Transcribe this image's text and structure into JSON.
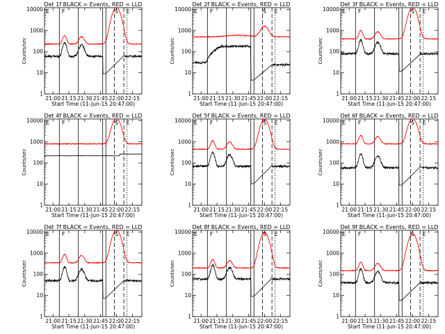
{
  "page": {
    "background": "#ffffff",
    "axis_color": "#000000"
  },
  "chart_data": {
    "type": "line",
    "yscale": "log",
    "ylim": [
      1,
      12000
    ],
    "y_ticks": [
      {
        "value": 1,
        "label": "1"
      },
      {
        "value": 10,
        "label": "10"
      },
      {
        "value": 100,
        "label": "100"
      },
      {
        "value": 1000,
        "label": "1000"
      },
      {
        "value": 10000,
        "label": "10000"
      }
    ],
    "xlim": [
      "20:52",
      "22:24"
    ],
    "x_ticks": [
      {
        "value": "21:00",
        "label": "21:00"
      },
      {
        "value": "21:15",
        "label": "21:15"
      },
      {
        "value": "21:30",
        "label": "21:30"
      },
      {
        "value": "21:45",
        "label": "21:45"
      },
      {
        "value": "22:00",
        "label": "22:00"
      },
      {
        "value": "22:15",
        "label": "22:15"
      }
    ],
    "xlabel": "Start Time (11-Jun-15 20:47:00)",
    "ylabel": "Counts/sec",
    "events_color": "#000000",
    "lld_color": "#ff0000",
    "markers": {
      "solid": [
        "21:06",
        "21:24",
        "21:47",
        "21:50"
      ],
      "dashed": [
        "21:58",
        "22:07"
      ],
      "dotted": [
        "22:10"
      ]
    },
    "flags": [
      {
        "time": "20:52",
        "text": "E"
      },
      {
        "time": "21:07",
        "text": "F"
      },
      {
        "time": "21:57",
        "text": "S"
      },
      {
        "time": "22:08",
        "text": "E"
      }
    ],
    "panels": [
      {
        "title": "Det 1f BLACK = Events, RED = LLD",
        "events_base": 60,
        "lld_base": 230,
        "peak": 12000,
        "flare_on": true,
        "flat": false,
        "plateau": false
      },
      {
        "title": "Det 2f BLACK = Events, RED = LLD",
        "events_base": 30,
        "lld_base": 500,
        "peak": 1100,
        "flare_on": true,
        "flat": false,
        "plateau": true
      },
      {
        "title": "Det 3f BLACK = Events, RED = LLD",
        "events_base": 80,
        "lld_base": 400,
        "peak": 12000,
        "flare_on": true,
        "flat": false,
        "plateau": false
      },
      {
        "title": "Det 4f BLACK = Events, RED = LLD",
        "events_base": 220,
        "lld_base": 800,
        "peak": 12000,
        "flare_on": true,
        "flat": true,
        "plateau": false
      },
      {
        "title": "Det 5f BLACK = Events, RED = LLD",
        "events_base": 70,
        "lld_base": 450,
        "peak": 11000,
        "flare_on": true,
        "flat": false,
        "plateau": false
      },
      {
        "title": "Det 6f BLACK = Events, RED = LLD",
        "events_base": 60,
        "lld_base": 800,
        "peak": 12000,
        "flare_on": true,
        "flat": false,
        "plateau": false
      },
      {
        "title": "Det 7f BLACK = Events, RED = LLD",
        "events_base": 50,
        "lld_base": 350,
        "peak": 12000,
        "flare_on": true,
        "flat": false,
        "plateau": false
      },
      {
        "title": "Det 8f BLACK = Events, RED = LLD",
        "events_base": 60,
        "lld_base": 200,
        "peak": 9000,
        "flare_on": true,
        "flat": false,
        "plateau": false
      },
      {
        "title": "Det 9f BLACK = Events, RED = LLD",
        "events_base": 40,
        "lld_base": 150,
        "peak": 8000,
        "flare_on": true,
        "flat": false,
        "plateau": false
      }
    ]
  }
}
